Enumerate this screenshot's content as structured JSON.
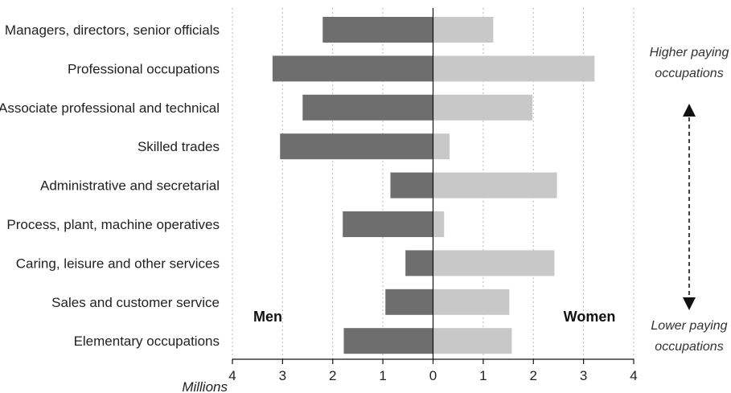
{
  "chart_data": {
    "type": "bar",
    "orientation": "horizontal",
    "layout": "diverging",
    "categories": [
      "Managers, directors, senior officials",
      "Professional occupations",
      "Associate professional and technical",
      "Skilled trades",
      "Administrative and secretarial",
      "Process, plant, machine operatives",
      "Caring, leisure and other services",
      "Sales and customer service",
      "Elementary occupations"
    ],
    "series": [
      {
        "name": "Men",
        "direction": "left",
        "color": "#6e6e6e",
        "values": [
          2.2,
          3.2,
          2.6,
          3.05,
          0.85,
          1.8,
          0.55,
          0.95,
          1.78
        ]
      },
      {
        "name": "Women",
        "direction": "right",
        "color": "#c8c8c8",
        "values": [
          1.2,
          3.22,
          1.98,
          0.33,
          2.47,
          0.22,
          2.42,
          1.52,
          1.57
        ]
      }
    ],
    "xlim": [
      -4,
      4
    ],
    "xticks": [
      -4,
      -3,
      -2,
      -1,
      0,
      1,
      2,
      3,
      4
    ],
    "xtick_labels": [
      "4",
      "3",
      "2",
      "1",
      "0",
      "1",
      "2",
      "3",
      "4"
    ],
    "xlabel": "Millions",
    "vertical_gridlines": "dotted",
    "annotations": {
      "top": [
        "Higher paying",
        "occupations"
      ],
      "bottom": [
        "Lower paying",
        "occupations"
      ],
      "arrow": "double-headed-dashed"
    }
  }
}
